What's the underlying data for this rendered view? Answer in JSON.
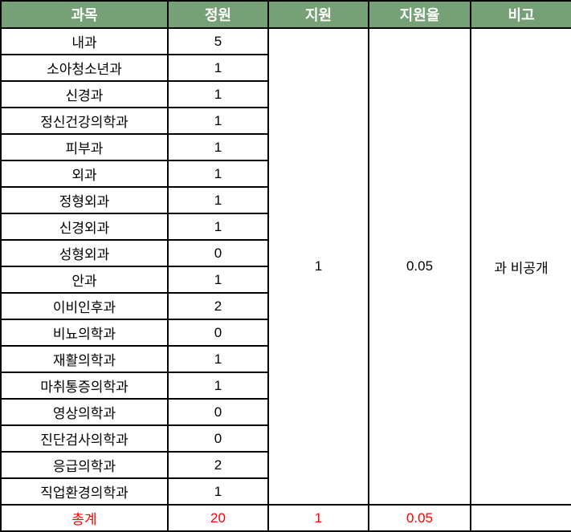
{
  "table": {
    "headers": [
      "과목",
      "정원",
      "지원",
      "지원율",
      "비고"
    ],
    "rows": [
      {
        "subject": "내과",
        "quota": "5"
      },
      {
        "subject": "소아청소년과",
        "quota": "1"
      },
      {
        "subject": "신경과",
        "quota": "1"
      },
      {
        "subject": "정신건강의학과",
        "quota": "1"
      },
      {
        "subject": "피부과",
        "quota": "1"
      },
      {
        "subject": "외과",
        "quota": "1"
      },
      {
        "subject": "정형외과",
        "quota": "1"
      },
      {
        "subject": "신경외과",
        "quota": "1"
      },
      {
        "subject": "성형외과",
        "quota": "0"
      },
      {
        "subject": "안과",
        "quota": "1"
      },
      {
        "subject": "이비인후과",
        "quota": "2"
      },
      {
        "subject": "비뇨의학과",
        "quota": "0"
      },
      {
        "subject": "재활의학과",
        "quota": "1"
      },
      {
        "subject": "마취통증의학과",
        "quota": "1"
      },
      {
        "subject": "영상의학과",
        "quota": "0"
      },
      {
        "subject": "진단검사의학과",
        "quota": "0"
      },
      {
        "subject": "응급의학과",
        "quota": "2"
      },
      {
        "subject": "직업환경의학과",
        "quota": "1"
      }
    ],
    "merged": {
      "applied": "1",
      "rate": "0.05",
      "note": "과 비공개"
    },
    "total": {
      "label": "총계",
      "quota": "20",
      "applied": "1",
      "rate": "0.05",
      "note": ""
    }
  },
  "colors": {
    "header_bg": "#76A176",
    "header_text": "#FFFFFF",
    "total_text": "#FF0000",
    "border": "#000000"
  }
}
